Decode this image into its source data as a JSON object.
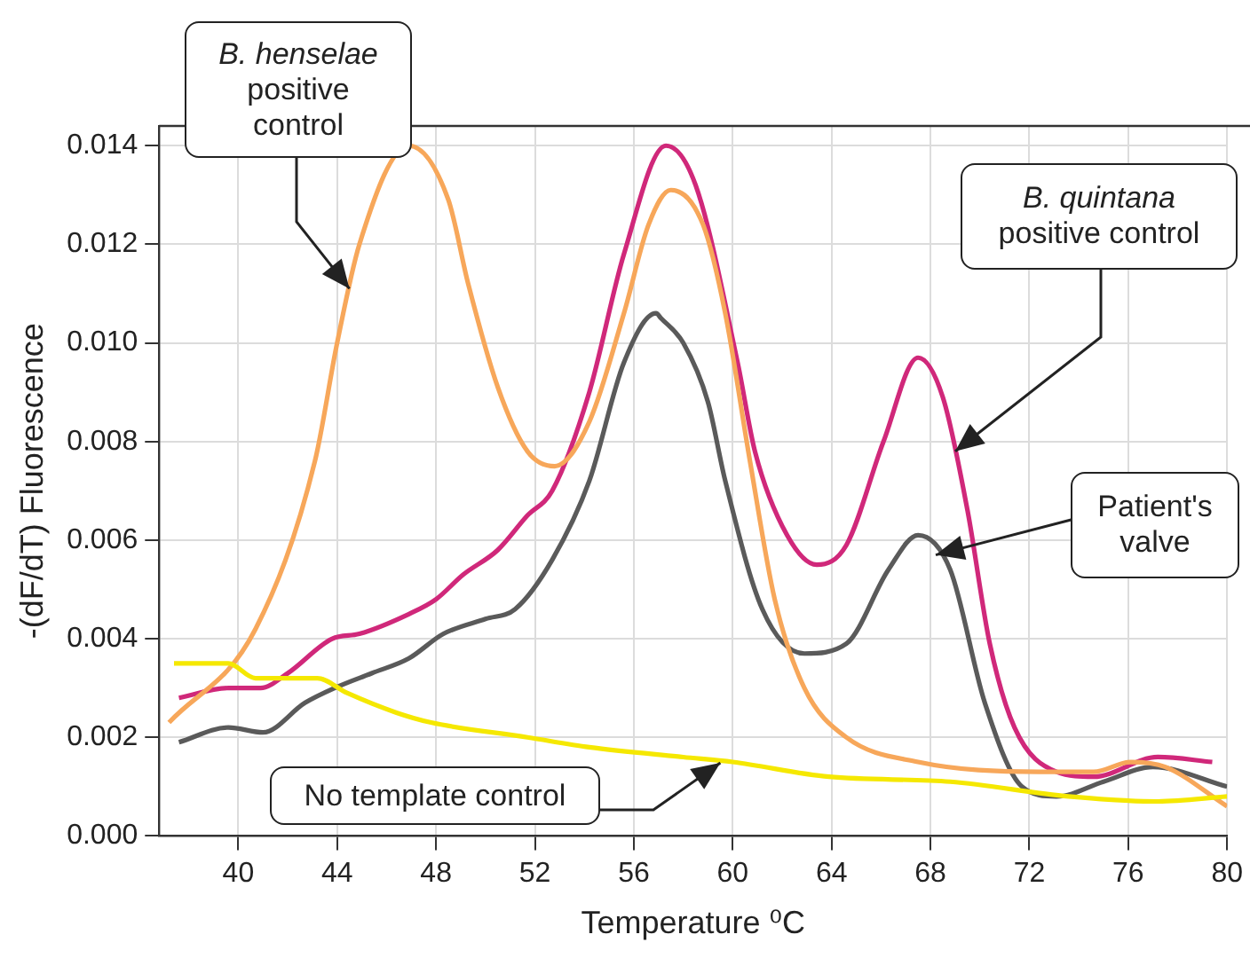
{
  "chart_data": {
    "type": "line",
    "xlabel": "Temperature ⁰C",
    "ylabel": "-(dF/dT) Fluorescence",
    "xlim": [
      36.8,
      80
    ],
    "ylim": [
      0,
      0.0144
    ],
    "xticks": [
      40,
      44,
      48,
      52,
      56,
      60,
      64,
      68,
      72,
      76,
      80
    ],
    "yticks": [
      {
        "value": 0,
        "label": "0.000"
      },
      {
        "value": 0.002,
        "label": "0.002"
      },
      {
        "value": 0.004,
        "label": "0.004"
      },
      {
        "value": 0.006,
        "label": "0.006"
      },
      {
        "value": 0.008,
        "label": "0.008"
      },
      {
        "value": 0.01,
        "label": "0.010"
      },
      {
        "value": 0.012,
        "label": "0.012"
      },
      {
        "value": 0.014,
        "label": "0.014"
      }
    ],
    "grid": true,
    "legend": false,
    "marker": "none",
    "line_style": "solid",
    "series": [
      {
        "color": "#f5e800",
        "x": [
          37.4,
          39.6,
          40.7,
          43.2,
          44.4,
          46.4,
          47.8,
          51.7,
          54.2,
          58.0,
          60.0,
          63.9,
          68.8,
          73.6,
          77.2,
          80
        ],
        "values": [
          0.0035,
          0.0035,
          0.0032,
          0.0032,
          0.0029,
          0.0025,
          0.0023,
          0.002,
          0.0018,
          0.0016,
          0.0015,
          0.0012,
          0.0011,
          0.0008,
          0.0007,
          0.0008
        ]
      },
      {
        "color": "#f7a75a",
        "x": [
          37.2,
          40.7,
          43.1,
          44.0,
          44.9,
          46.9,
          48.5,
          49.3,
          50.5,
          51.7,
          52.8,
          54.2,
          55.6,
          56.6,
          57.5,
          58.8,
          59.7,
          60.7,
          61.7,
          62.9,
          64.6,
          67.5,
          72.4,
          74.6,
          76.1,
          77.5,
          80
        ],
        "values": [
          0.0023,
          0.0042,
          0.0076,
          0.01,
          0.012,
          0.014,
          0.0129,
          0.0112,
          0.0091,
          0.0078,
          0.0075,
          0.0084,
          0.0106,
          0.0124,
          0.0131,
          0.0124,
          0.0106,
          0.0076,
          0.0048,
          0.003,
          0.002,
          0.0015,
          0.0013,
          0.0013,
          0.0015,
          0.0014,
          0.0006
        ]
      },
      {
        "color": "#5a5a5a",
        "x": [
          37.6,
          39.6,
          41.0,
          42.7,
          43.9,
          45.4,
          46.9,
          48.3,
          50.0,
          51.2,
          52.7,
          54.2,
          55.6,
          56.9,
          57.1,
          58.0,
          59.0,
          59.7,
          61.2,
          62.9,
          64.6,
          66.3,
          67.5,
          68.8,
          70.2,
          71.7,
          73.1,
          75.0,
          77.0,
          80
        ],
        "values": [
          0.0019,
          0.0022,
          0.0021,
          0.0027,
          0.003,
          0.0033,
          0.0036,
          0.0041,
          0.0044,
          0.0046,
          0.0056,
          0.0072,
          0.0096,
          0.0106,
          0.0105,
          0.01,
          0.0088,
          0.0072,
          0.0046,
          0.0037,
          0.0039,
          0.0054,
          0.0061,
          0.0054,
          0.0027,
          0.001,
          0.0008,
          0.0011,
          0.0014,
          0.001
        ]
      },
      {
        "color": "#d0287a",
        "x": [
          37.6,
          39.6,
          40.9,
          42.0,
          43.8,
          44.9,
          46.9,
          48.0,
          49.1,
          50.5,
          51.7,
          52.7,
          54.2,
          55.6,
          57.3,
          58.5,
          60.2,
          60.9,
          62.2,
          63.4,
          64.6,
          66.1,
          67.5,
          68.5,
          69.5,
          70.4,
          71.4,
          73.1,
          74.6,
          77.2,
          79.4
        ],
        "values": [
          0.0028,
          0.003,
          0.003,
          0.0033,
          0.004,
          0.0041,
          0.0045,
          0.0048,
          0.0053,
          0.0058,
          0.0065,
          0.007,
          0.009,
          0.0118,
          0.014,
          0.0132,
          0.0096,
          0.0078,
          0.0061,
          0.0055,
          0.0059,
          0.008,
          0.0097,
          0.0089,
          0.0066,
          0.0039,
          0.0022,
          0.0013,
          0.0012,
          0.0016,
          0.0015
        ]
      }
    ],
    "annotations": [
      {
        "text": "B. henselae\npositive\ncontrol",
        "x": 44.5,
        "y": 0.0111
      },
      {
        "text": "B. quintana\npositive control",
        "x": 69.0,
        "y": 0.0078
      },
      {
        "text": "Patient's\nvalve",
        "x": 68.2,
        "y": 0.0057
      },
      {
        "text": "No template control",
        "x": 59.5,
        "y": 0.0015
      }
    ]
  }
}
